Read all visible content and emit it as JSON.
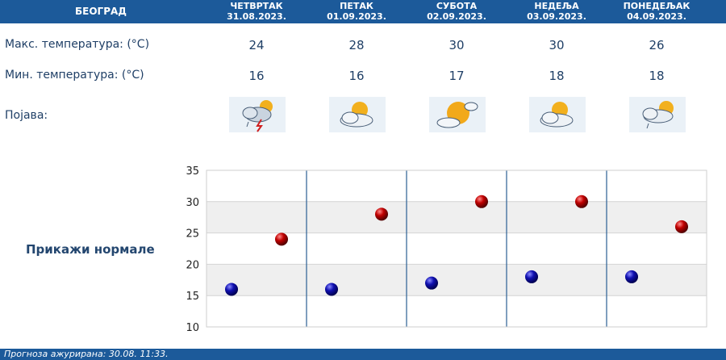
{
  "city": "БЕОГРАД",
  "days": [
    {
      "name": "ЧЕТВРТАК",
      "date": "31.08.2023.",
      "max": "24",
      "min": "16",
      "icon": "cloud-sun-thunder-icon"
    },
    {
      "name": "ПЕТАК",
      "date": "01.09.2023.",
      "max": "28",
      "min": "16",
      "icon": "partly-cloudy-icon"
    },
    {
      "name": "СУБОТА",
      "date": "02.09.2023.",
      "max": "30",
      "min": "17",
      "icon": "sunny-cloud-icon"
    },
    {
      "name": "НЕДЕЉА",
      "date": "03.09.2023.",
      "max": "30",
      "min": "18",
      "icon": "partly-cloudy-icon"
    },
    {
      "name": "ПОНЕДЕЉАК",
      "date": "04.09.2023.",
      "max": "26",
      "min": "18",
      "icon": "cloud-sun-rain-icon"
    }
  ],
  "labels": {
    "max": "Макс. температура: (°C)",
    "min": "Мин. температура: (°C)",
    "phenomenon": "Појава:"
  },
  "normals_link": "Прикажи нормале",
  "footer": "Прогноза ажурирана:  30.08.  11:33.",
  "colors": {
    "header": "#1c5a9a",
    "max_dot": "#c00000",
    "min_dot": "#1010b0"
  },
  "chart_data": {
    "type": "scatter",
    "categories": [
      "31.08.2023.",
      "01.09.2023.",
      "02.09.2023.",
      "03.09.2023.",
      "04.09.2023."
    ],
    "series": [
      {
        "values": [
          16,
          16,
          17,
          18,
          18
        ]
      },
      {
        "values": [
          24,
          28,
          30,
          30,
          26
        ]
      }
    ],
    "ylim": [
      10,
      35
    ],
    "yticks": [
      "10",
      "15",
      "20",
      "25",
      "30",
      "35"
    ],
    "grid": true
  }
}
